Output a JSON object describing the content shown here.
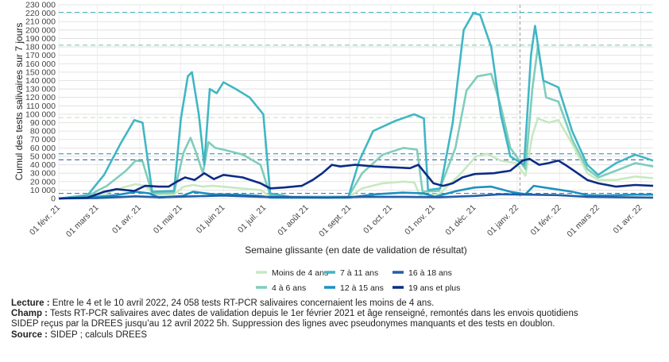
{
  "chart_data": {
    "type": "line",
    "ylabel": "Cumul des tests salivaires sur 7 jours",
    "xlabel": "Semaine glissante (en date de validation de résultat)",
    "ylim": [
      0,
      230000
    ],
    "yticks": [
      0,
      10000,
      20000,
      30000,
      40000,
      50000,
      60000,
      70000,
      80000,
      90000,
      100000,
      110000,
      120000,
      130000,
      140000,
      150000,
      160000,
      170000,
      180000,
      190000,
      200000,
      210000,
      220000,
      230000
    ],
    "ytick_labels": [
      "0",
      "10 000",
      "20 000",
      "30 000",
      "40 000",
      "50 000",
      "60 000",
      "70 000",
      "80 000",
      "90 000",
      "100 000",
      "110 000",
      "120 000",
      "130 000",
      "140 000",
      "150 000",
      "160 000",
      "170 000",
      "180 000",
      "190 000",
      "200 000",
      "210 000",
      "220 000",
      "230 000"
    ],
    "xlim": [
      "2021-02-01",
      "2022-04-10"
    ],
    "xticks": [
      "2021-02-01",
      "2021-03-01",
      "2021-04-01",
      "2021-05-01",
      "2021-06-01",
      "2021-07-01",
      "2021-08-01",
      "2021-09-01",
      "2021-10-01",
      "2021-11-01",
      "2021-12-01",
      "2022-01-01",
      "2022-02-01",
      "2022-03-01",
      "2022-04-01"
    ],
    "xtick_labels": [
      "01 févr. 21",
      "01 mars 21",
      "01 avr. 21",
      "01 mai 21",
      "01 juin 21",
      "01 juil. 21",
      "01 août 21",
      "01 sept. 21",
      "01 oct. 21",
      "01 nov. 21",
      "01 déc. 21",
      "01 janv. 22",
      "01 févr. 22",
      "01 mars 22",
      "01 avr. 22"
    ],
    "vertical_line": "2022-01-03",
    "reference_lines": [
      {
        "value": 221000,
        "color": "#4bb8c9"
      },
      {
        "value": 182000,
        "color": "#6ccaa6"
      },
      {
        "value": 96000,
        "color": "#bfe5b5"
      },
      {
        "value": 53000,
        "color": "#1f86b9"
      },
      {
        "value": 46000,
        "color": "#264b8e"
      },
      {
        "value": 6000,
        "color": "#2a6ab0"
      }
    ],
    "series": [
      {
        "name": "Moins de 4 ans",
        "color": "#c7e9c0",
        "points": [
          [
            "2021-02-01",
            0
          ],
          [
            "2021-02-22",
            1500
          ],
          [
            "2021-03-08",
            7000
          ],
          [
            "2021-03-22",
            14000
          ],
          [
            "2021-03-29",
            17000
          ],
          [
            "2021-04-05",
            15000
          ],
          [
            "2021-04-12",
            4000
          ],
          [
            "2021-04-26",
            5000
          ],
          [
            "2021-05-03",
            14000
          ],
          [
            "2021-05-10",
            16000
          ],
          [
            "2021-05-17",
            14000
          ],
          [
            "2021-05-24",
            15000
          ],
          [
            "2021-05-31",
            14000
          ],
          [
            "2021-06-14",
            12000
          ],
          [
            "2021-06-28",
            10000
          ],
          [
            "2021-07-05",
            2500
          ],
          [
            "2021-07-20",
            1000
          ],
          [
            "2021-08-31",
            1500
          ],
          [
            "2021-09-10",
            12000
          ],
          [
            "2021-09-25",
            18000
          ],
          [
            "2021-10-10",
            20000
          ],
          [
            "2021-10-18",
            19000
          ],
          [
            "2021-10-22",
            4000
          ],
          [
            "2021-11-05",
            5000
          ],
          [
            "2021-11-20",
            28000
          ],
          [
            "2021-12-02",
            50000
          ],
          [
            "2021-12-10",
            53000
          ],
          [
            "2021-12-20",
            45000
          ],
          [
            "2021-12-31",
            42000
          ],
          [
            "2022-01-07",
            27000
          ],
          [
            "2022-01-12",
            75000
          ],
          [
            "2022-01-16",
            95000
          ],
          [
            "2022-01-24",
            90000
          ],
          [
            "2022-01-31",
            93000
          ],
          [
            "2022-02-10",
            65000
          ],
          [
            "2022-02-21",
            30000
          ],
          [
            "2022-03-01",
            22000
          ],
          [
            "2022-03-14",
            22000
          ],
          [
            "2022-03-28",
            26000
          ],
          [
            "2022-04-10",
            24058
          ]
        ]
      },
      {
        "name": "4 à 6 ans",
        "color": "#7fcdbb",
        "points": [
          [
            "2021-02-01",
            0
          ],
          [
            "2021-02-22",
            3000
          ],
          [
            "2021-03-08",
            15000
          ],
          [
            "2021-03-22",
            33000
          ],
          [
            "2021-03-29",
            45000
          ],
          [
            "2021-04-03",
            44000
          ],
          [
            "2021-04-10",
            6000
          ],
          [
            "2021-04-26",
            7000
          ],
          [
            "2021-05-03",
            55000
          ],
          [
            "2021-05-08",
            72000
          ],
          [
            "2021-05-12",
            55000
          ],
          [
            "2021-05-17",
            30000
          ],
          [
            "2021-05-21",
            67000
          ],
          [
            "2021-05-26",
            60000
          ],
          [
            "2021-06-01",
            58000
          ],
          [
            "2021-06-15",
            52000
          ],
          [
            "2021-06-28",
            40000
          ],
          [
            "2021-07-05",
            4000
          ],
          [
            "2021-07-20",
            1500
          ],
          [
            "2021-08-31",
            2000
          ],
          [
            "2021-09-10",
            30000
          ],
          [
            "2021-09-25",
            52000
          ],
          [
            "2021-10-10",
            60000
          ],
          [
            "2021-10-20",
            58000
          ],
          [
            "2021-10-24",
            8000
          ],
          [
            "2021-11-05",
            9000
          ],
          [
            "2021-11-17",
            60000
          ],
          [
            "2021-11-25",
            128000
          ],
          [
            "2021-12-03",
            145000
          ],
          [
            "2021-12-13",
            148000
          ],
          [
            "2021-12-20",
            110000
          ],
          [
            "2021-12-27",
            60000
          ],
          [
            "2022-01-07",
            35000
          ],
          [
            "2022-01-12",
            130000
          ],
          [
            "2022-01-16",
            180000
          ],
          [
            "2022-01-22",
            120000
          ],
          [
            "2022-01-31",
            115000
          ],
          [
            "2022-02-10",
            70000
          ],
          [
            "2022-02-21",
            35000
          ],
          [
            "2022-03-01",
            25000
          ],
          [
            "2022-03-14",
            33000
          ],
          [
            "2022-03-28",
            42000
          ],
          [
            "2022-04-10",
            38000
          ]
        ]
      },
      {
        "name": "7 à 11 ans",
        "color": "#41b6c4",
        "points": [
          [
            "2021-02-01",
            0
          ],
          [
            "2021-02-22",
            4000
          ],
          [
            "2021-03-06",
            28000
          ],
          [
            "2021-03-18",
            65000
          ],
          [
            "2021-03-28",
            93000
          ],
          [
            "2021-04-03",
            90000
          ],
          [
            "2021-04-10",
            8000
          ],
          [
            "2021-04-26",
            9000
          ],
          [
            "2021-05-01",
            95000
          ],
          [
            "2021-05-06",
            145000
          ],
          [
            "2021-05-09",
            150000
          ],
          [
            "2021-05-14",
            100000
          ],
          [
            "2021-05-18",
            40000
          ],
          [
            "2021-05-22",
            130000
          ],
          [
            "2021-05-27",
            125000
          ],
          [
            "2021-06-01",
            138000
          ],
          [
            "2021-06-10",
            130000
          ],
          [
            "2021-06-20",
            120000
          ],
          [
            "2021-06-30",
            100000
          ],
          [
            "2021-07-05",
            6000
          ],
          [
            "2021-07-20",
            2000
          ],
          [
            "2021-08-31",
            2000
          ],
          [
            "2021-09-08",
            45000
          ],
          [
            "2021-09-18",
            80000
          ],
          [
            "2021-10-04",
            92000
          ],
          [
            "2021-10-18",
            100000
          ],
          [
            "2021-10-25",
            95000
          ],
          [
            "2021-10-28",
            10000
          ],
          [
            "2021-11-06",
            12000
          ],
          [
            "2021-11-15",
            90000
          ],
          [
            "2021-11-23",
            200000
          ],
          [
            "2021-11-30",
            220000
          ],
          [
            "2021-12-05",
            218000
          ],
          [
            "2021-12-13",
            180000
          ],
          [
            "2021-12-20",
            100000
          ],
          [
            "2021-12-27",
            50000
          ],
          [
            "2022-01-06",
            40000
          ],
          [
            "2022-01-11",
            170000
          ],
          [
            "2022-01-14",
            205000
          ],
          [
            "2022-01-20",
            140000
          ],
          [
            "2022-01-31",
            132000
          ],
          [
            "2022-02-10",
            80000
          ],
          [
            "2022-02-21",
            40000
          ],
          [
            "2022-03-01",
            28000
          ],
          [
            "2022-03-14",
            42000
          ],
          [
            "2022-03-28",
            52000
          ],
          [
            "2022-04-10",
            45000
          ]
        ]
      },
      {
        "name": "12 à 15 ans",
        "color": "#1d91c0",
        "points": [
          [
            "2021-02-01",
            0
          ],
          [
            "2021-02-22",
            1000
          ],
          [
            "2021-03-15",
            4000
          ],
          [
            "2021-03-29",
            8000
          ],
          [
            "2021-04-08",
            6000
          ],
          [
            "2021-04-15",
            1000
          ],
          [
            "2021-05-02",
            3000
          ],
          [
            "2021-05-10",
            8000
          ],
          [
            "2021-05-24",
            5000
          ],
          [
            "2021-06-10",
            4500
          ],
          [
            "2021-06-28",
            3000
          ],
          [
            "2021-07-05",
            1000
          ],
          [
            "2021-08-31",
            1000
          ],
          [
            "2021-09-20",
            5000
          ],
          [
            "2021-10-10",
            7000
          ],
          [
            "2021-10-25",
            6000
          ],
          [
            "2021-11-02",
            2000
          ],
          [
            "2021-11-18",
            9000
          ],
          [
            "2021-12-01",
            13000
          ],
          [
            "2021-12-13",
            14000
          ],
          [
            "2021-12-27",
            8000
          ],
          [
            "2022-01-07",
            5000
          ],
          [
            "2022-01-13",
            15000
          ],
          [
            "2022-01-25",
            12000
          ],
          [
            "2022-02-10",
            8000
          ],
          [
            "2022-02-21",
            4000
          ],
          [
            "2022-03-05",
            3500
          ],
          [
            "2022-03-28",
            4500
          ],
          [
            "2022-04-10",
            4500
          ]
        ]
      },
      {
        "name": "16 à 18 ans",
        "color": "#225ea8",
        "points": [
          [
            "2021-02-01",
            0
          ],
          [
            "2021-03-01",
            500
          ],
          [
            "2021-03-29",
            2500
          ],
          [
            "2021-04-15",
            1500
          ],
          [
            "2021-05-10",
            2500
          ],
          [
            "2021-06-01",
            3500
          ],
          [
            "2021-06-28",
            2000
          ],
          [
            "2021-08-15",
            1000
          ],
          [
            "2021-09-10",
            2000
          ],
          [
            "2021-10-10",
            2000
          ],
          [
            "2021-11-05",
            1500
          ],
          [
            "2021-12-01",
            3000
          ],
          [
            "2021-12-20",
            5000
          ],
          [
            "2022-01-10",
            4500
          ],
          [
            "2022-01-31",
            4000
          ],
          [
            "2022-02-21",
            2000
          ],
          [
            "2022-03-15",
            1500
          ],
          [
            "2022-04-10",
            1000
          ]
        ]
      },
      {
        "name": "19 ans et plus",
        "color": "#0c2c84",
        "points": [
          [
            "2021-02-01",
            0
          ],
          [
            "2021-02-22",
            1000
          ],
          [
            "2021-03-06",
            8000
          ],
          [
            "2021-03-15",
            11000
          ],
          [
            "2021-03-28",
            9000
          ],
          [
            "2021-04-05",
            15000
          ],
          [
            "2021-04-15",
            14000
          ],
          [
            "2021-04-22",
            14000
          ],
          [
            "2021-04-28",
            20000
          ],
          [
            "2021-05-04",
            25000
          ],
          [
            "2021-05-11",
            22000
          ],
          [
            "2021-05-18",
            30000
          ],
          [
            "2021-05-25",
            23000
          ],
          [
            "2021-06-01",
            28000
          ],
          [
            "2021-06-15",
            25000
          ],
          [
            "2021-06-28",
            18000
          ],
          [
            "2021-07-05",
            12000
          ],
          [
            "2021-07-15",
            13000
          ],
          [
            "2021-07-28",
            15000
          ],
          [
            "2021-08-05",
            22000
          ],
          [
            "2021-08-12",
            30000
          ],
          [
            "2021-08-19",
            40000
          ],
          [
            "2021-08-25",
            38000
          ],
          [
            "2021-09-05",
            40000
          ],
          [
            "2021-09-19",
            38000
          ],
          [
            "2021-10-01",
            37000
          ],
          [
            "2021-10-15",
            36000
          ],
          [
            "2021-10-21",
            40000
          ],
          [
            "2021-10-26",
            30000
          ],
          [
            "2021-11-01",
            18000
          ],
          [
            "2021-11-08",
            15000
          ],
          [
            "2021-11-15",
            18000
          ],
          [
            "2021-11-22",
            25000
          ],
          [
            "2021-12-01",
            29000
          ],
          [
            "2021-12-15",
            30000
          ],
          [
            "2021-12-27",
            33000
          ],
          [
            "2022-01-05",
            45000
          ],
          [
            "2022-01-10",
            47000
          ],
          [
            "2022-01-17",
            40000
          ],
          [
            "2022-01-24",
            42000
          ],
          [
            "2022-01-31",
            45000
          ],
          [
            "2022-02-05",
            40000
          ],
          [
            "2022-02-14",
            30000
          ],
          [
            "2022-02-21",
            22000
          ],
          [
            "2022-03-01",
            18000
          ],
          [
            "2022-03-14",
            14000
          ],
          [
            "2022-03-28",
            16000
          ],
          [
            "2022-04-10",
            15000
          ]
        ]
      }
    ]
  },
  "legend": [
    {
      "label": "Moins de 4 ans",
      "color": "#c7e9c0"
    },
    {
      "label": "4 à 6 ans",
      "color": "#7fcdbb"
    },
    {
      "label": "7 à 11 ans",
      "color": "#41b6c4"
    },
    {
      "label": "12 à 15 ans",
      "color": "#1d91c0"
    },
    {
      "label": "16 à 18 ans",
      "color": "#225ea8"
    },
    {
      "label": "19 ans et plus",
      "color": "#0c2c84"
    }
  ],
  "notes": {
    "lecture_label": "Lecture :",
    "lecture_text": " Entre le 4 et le 10 avril 2022, 24 058 tests RT-PCR salivaires concernaient les moins de 4 ans.",
    "champ_label": "Champ :",
    "champ_text": " Tests RT-PCR salivaires avec dates de validation depuis le 1er février 2021 et âge renseigné, remontés dans les envois quotidiens",
    "champ_text2": "SIDEP reçus par la DREES jusqu’au 12 avril 2022 5h. Suppression des lignes avec pseudonymes manquants et des tests en doublon.",
    "source_label": "Source :",
    "source_text": " SIDEP ; calculs DREES"
  }
}
